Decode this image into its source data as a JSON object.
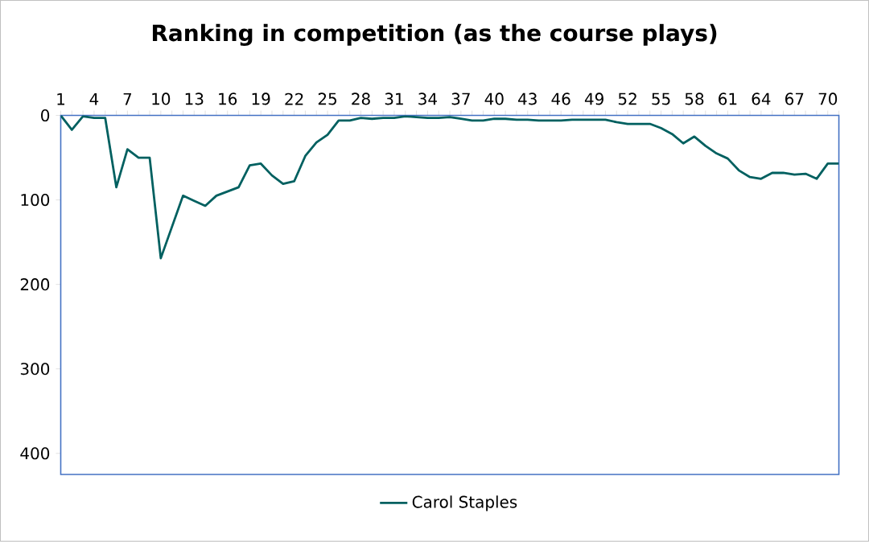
{
  "chart_data": {
    "type": "line",
    "title": "Ranking in competition (as the course plays)",
    "categories": [
      "1",
      null,
      null,
      "4",
      null,
      null,
      "7",
      null,
      null,
      "10",
      null,
      null,
      "13",
      null,
      null,
      "16",
      null,
      null,
      "19",
      null,
      null,
      "22",
      null,
      null,
      "25",
      null,
      null,
      "28",
      null,
      null,
      "31",
      null,
      null,
      "34",
      null,
      null,
      "37",
      null,
      null,
      "40",
      null,
      null,
      "43",
      null,
      null,
      "46",
      null,
      null,
      "49",
      null,
      null,
      "52",
      null,
      null,
      "55",
      null,
      null,
      "58",
      null,
      null,
      "61",
      null,
      null,
      "64",
      null,
      null,
      "67",
      null,
      null,
      "70",
      null
    ],
    "series": [
      {
        "name": "Carol Staples",
        "color": "#006060",
        "values": [
          0,
          17,
          1,
          3,
          3,
          85,
          40,
          50,
          50,
          169,
          132,
          95,
          101,
          107,
          95,
          90,
          85,
          59,
          57,
          71,
          81,
          78,
          48,
          32,
          23,
          6,
          6,
          3,
          4,
          3,
          3,
          1,
          2,
          3,
          3,
          2,
          4,
          6,
          6,
          4,
          4,
          5,
          5,
          6,
          6,
          6,
          5,
          5,
          5,
          5,
          8,
          10,
          10,
          10,
          15,
          22,
          33,
          25,
          36,
          45,
          51,
          65,
          73,
          75,
          68,
          68,
          70,
          69,
          75,
          57,
          57
        ]
      }
    ],
    "ylim": [
      425,
      0
    ],
    "yticks": [
      0,
      100,
      200,
      300,
      400
    ],
    "grid": false,
    "legend": "bottom",
    "marker": "none",
    "line_style": "solid"
  }
}
